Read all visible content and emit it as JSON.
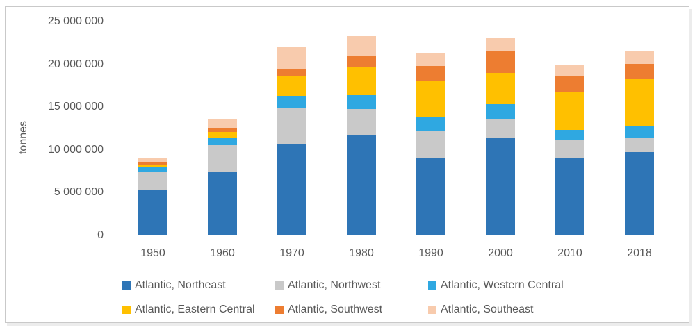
{
  "chart_data": {
    "type": "bar",
    "stacked": true,
    "title": "",
    "xlabel": "",
    "ylabel": "tonnes",
    "ylim": [
      0,
      25000000
    ],
    "grid": false,
    "legend_position": "bottom",
    "ytick_values": [
      0,
      5000000,
      10000000,
      15000000,
      20000000,
      25000000
    ],
    "ytick_labels": [
      "0",
      "5 000 000",
      "10 000 000",
      "15 000 000",
      "20 000 000",
      "25 000 000"
    ],
    "categories": [
      "1950",
      "1960",
      "1970",
      "1980",
      "1990",
      "2000",
      "2010",
      "2018"
    ],
    "series": [
      {
        "name": "Atlantic, Northeast",
        "color": "#2e75b6",
        "values": [
          5250000,
          7400000,
          10550000,
          11700000,
          8900000,
          11300000,
          8950000,
          9650000
        ]
      },
      {
        "name": "Atlantic, Northwest",
        "color": "#c9c9c9",
        "values": [
          2150000,
          3100000,
          4200000,
          3000000,
          3250000,
          2150000,
          2200000,
          1650000
        ]
      },
      {
        "name": "Atlantic, Western Central",
        "color": "#2fa8e1",
        "values": [
          450000,
          850000,
          1500000,
          1650000,
          1650000,
          1850000,
          1100000,
          1450000
        ]
      },
      {
        "name": "Atlantic, Eastern Central",
        "color": "#ffc000",
        "values": [
          350000,
          700000,
          2300000,
          3300000,
          4200000,
          3650000,
          4450000,
          5450000
        ]
      },
      {
        "name": "Atlantic, Southwest",
        "color": "#ed7d31",
        "values": [
          350000,
          400000,
          800000,
          1300000,
          1750000,
          2500000,
          1800000,
          1800000
        ]
      },
      {
        "name": "Atlantic, Southeast",
        "color": "#f8cbad",
        "values": [
          400000,
          1100000,
          2600000,
          2250000,
          1550000,
          1500000,
          1350000,
          1550000
        ]
      }
    ]
  },
  "colors": {
    "axis_text": "#595959",
    "axis_line": "#d9d9d9",
    "frame_border": "#c9c9c9"
  }
}
